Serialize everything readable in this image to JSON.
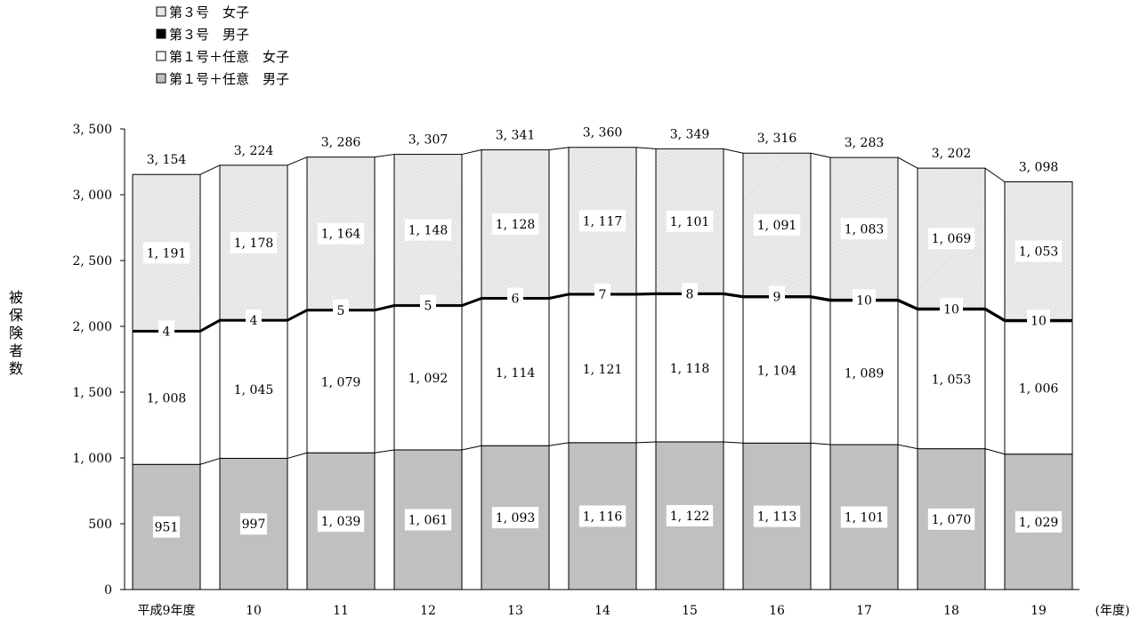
{
  "chart_data": {
    "type": "bar",
    "stacked": true,
    "categories": [
      "平成9年度",
      "10",
      "11",
      "12",
      "13",
      "14",
      "15",
      "16",
      "17",
      "18",
      "19"
    ],
    "series": [
      {
        "name": "第１号＋任意　男子",
        "values": [
          951,
          997,
          1039,
          1061,
          1093,
          1116,
          1122,
          1113,
          1101,
          1070,
          1029
        ],
        "labels": [
          "951",
          "997",
          "1, 039",
          "1, 061",
          "1, 093",
          "1, 116",
          "1, 122",
          "1, 113",
          "1, 101",
          "1, 070",
          "1, 029"
        ],
        "color": "#c0c0c0"
      },
      {
        "name": "第１号＋任意　女子",
        "values": [
          1008,
          1045,
          1079,
          1092,
          1114,
          1121,
          1118,
          1104,
          1089,
          1053,
          1006
        ],
        "labels": [
          "1, 008",
          "1, 045",
          "1, 079",
          "1, 092",
          "1, 114",
          "1, 121",
          "1, 118",
          "1, 104",
          "1, 089",
          "1, 053",
          "1, 006"
        ],
        "color": "#ffffff"
      },
      {
        "name": "第３号　男子",
        "values": [
          4,
          4,
          5,
          5,
          6,
          7,
          8,
          9,
          10,
          10,
          10
        ],
        "labels": [
          "4",
          "4",
          "5",
          "5",
          "6",
          "7",
          "8",
          "9",
          "10",
          "10",
          "10"
        ],
        "color": "#000000"
      },
      {
        "name": "第３号　女子",
        "values": [
          1191,
          1178,
          1164,
          1148,
          1128,
          1117,
          1101,
          1091,
          1083,
          1069,
          1053
        ],
        "labels": [
          "1, 191",
          "1, 178",
          "1, 164",
          "1, 148",
          "1, 128",
          "1, 117",
          "1, 101",
          "1, 091",
          "1, 083",
          "1, 069",
          "1, 053"
        ],
        "color": "#e4e4e4"
      }
    ],
    "totals": [
      3154,
      3224,
      3286,
      3307,
      3341,
      3360,
      3349,
      3316,
      3283,
      3202,
      3098
    ],
    "total_labels": [
      "3, 154",
      "3, 224",
      "3, 286",
      "3, 307",
      "3, 341",
      "3, 360",
      "3, 349",
      "3, 316",
      "3, 283",
      "3, 202",
      "3, 098"
    ],
    "ylim": [
      0,
      3500
    ],
    "yticks": [
      0,
      500,
      1000,
      1500,
      2000,
      2500,
      3000,
      3500
    ],
    "ytick_labels": [
      "0",
      "500",
      "1, 000",
      "1, 500",
      "2, 000",
      "2, 500",
      "3, 000",
      "3, 500"
    ],
    "ylabel": "被保険者数",
    "xlabel": "(年度)",
    "legend": {
      "placement": "top-left",
      "order": [
        "第３号　女子",
        "第３号　男子",
        "第１号＋任意　女子",
        "第１号＋任意　男子"
      ]
    },
    "grid": false
  }
}
